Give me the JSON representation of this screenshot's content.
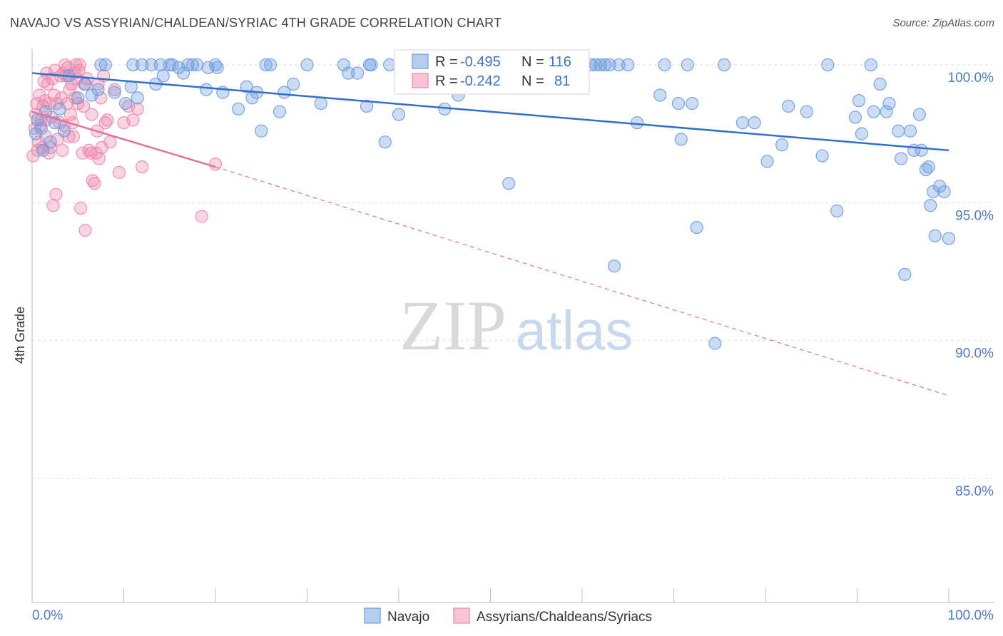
{
  "title": "NAVAJO VS ASSYRIAN/CHALDEAN/SYRIAC 4TH GRADE CORRELATION CHART",
  "source": "Source: ZipAtlas.com",
  "watermark": {
    "zip": "ZIP",
    "atlas": "atlas"
  },
  "legend": {
    "r_label": "R =",
    "n_label": "N =",
    "rows": [
      {
        "r": "-0.495",
        "n": "116"
      },
      {
        "r": "-0.242",
        "n": "81"
      }
    ]
  },
  "chart_data": {
    "type": "scatter",
    "title": "NAVAJO VS ASSYRIAN/CHALDEAN/SYRIAC 4TH GRADE CORRELATION CHART",
    "xlabel": "",
    "ylabel": "4th Grade",
    "xlim": [
      0,
      100
    ],
    "ylim": [
      80.5,
      100.8
    ],
    "x_tick_labels": [
      "0.0%",
      "100.0%"
    ],
    "y_ticks": [
      85,
      90,
      95,
      100
    ],
    "y_tick_labels": [
      "85.0%",
      "90.0%",
      "95.0%",
      "100.0%"
    ],
    "grid": true,
    "colors": {
      "navajo": "#6a9be0",
      "assyrian": "#ee87a9",
      "navajo_line": "#2f6fd0",
      "assyrian_line": "#e5709a",
      "tick_text": "#4a7cc7"
    },
    "series": [
      {
        "name": "Navajo",
        "r": -0.495,
        "n": 116,
        "trend": {
          "x": [
            0,
            100
          ],
          "y": [
            99.7,
            96.9
          ]
        },
        "points": [
          [
            0.4,
            97.5
          ],
          [
            0.6,
            98.0
          ],
          [
            1.0,
            97.7
          ],
          [
            1.2,
            96.9
          ],
          [
            1.5,
            98.3
          ],
          [
            2.0,
            97.2
          ],
          [
            2.5,
            97.9
          ],
          [
            3.0,
            98.4
          ],
          [
            3.5,
            97.6
          ],
          [
            4.0,
            99.6
          ],
          [
            5.0,
            98.8
          ],
          [
            5.8,
            99.3
          ],
          [
            6.5,
            98.9
          ],
          [
            7.2,
            99.1
          ],
          [
            7.5,
            100.0
          ],
          [
            8.0,
            100.0
          ],
          [
            9.0,
            99.0
          ],
          [
            10.2,
            98.6
          ],
          [
            10.8,
            99.2
          ],
          [
            11.0,
            100.0
          ],
          [
            11.5,
            98.8
          ],
          [
            12.0,
            100.0
          ],
          [
            13.0,
            100.0
          ],
          [
            13.5,
            99.3
          ],
          [
            14.0,
            100.0
          ],
          [
            14.3,
            99.6
          ],
          [
            15.0,
            100.0
          ],
          [
            15.3,
            100.0
          ],
          [
            16.0,
            99.9
          ],
          [
            16.5,
            99.7
          ],
          [
            17.0,
            100.0
          ],
          [
            17.5,
            100.0
          ],
          [
            18.0,
            100.0
          ],
          [
            19.0,
            99.1
          ],
          [
            19.2,
            99.9
          ],
          [
            20.0,
            100.0
          ],
          [
            20.2,
            99.9
          ],
          [
            20.8,
            99.0
          ],
          [
            22.5,
            98.4
          ],
          [
            23.4,
            99.2
          ],
          [
            24.0,
            98.8
          ],
          [
            24.5,
            99.0
          ],
          [
            25.0,
            97.6
          ],
          [
            25.5,
            100.0
          ],
          [
            26.0,
            100.0
          ],
          [
            27.0,
            98.3
          ],
          [
            27.5,
            99.0
          ],
          [
            28.5,
            99.3
          ],
          [
            30.0,
            100.0
          ],
          [
            31.5,
            98.6
          ],
          [
            34.0,
            100.0
          ],
          [
            34.5,
            99.7
          ],
          [
            35.5,
            99.7
          ],
          [
            36.5,
            98.5
          ],
          [
            36.8,
            100.0
          ],
          [
            37.0,
            100.0
          ],
          [
            38.5,
            97.2
          ],
          [
            39.0,
            100.0
          ],
          [
            40.0,
            98.2
          ],
          [
            41.0,
            100.0
          ],
          [
            43.0,
            100.0
          ],
          [
            45.0,
            98.4
          ],
          [
            46.5,
            98.9
          ],
          [
            52.0,
            95.7
          ],
          [
            52.5,
            100.0
          ],
          [
            56.0,
            99.4
          ],
          [
            61.0,
            100.0
          ],
          [
            61.5,
            100.0
          ],
          [
            62.0,
            100.0
          ],
          [
            62.5,
            100.0
          ],
          [
            63.0,
            100.0
          ],
          [
            63.5,
            92.7
          ],
          [
            64.0,
            100.0
          ],
          [
            65.0,
            100.0
          ],
          [
            66.0,
            97.9
          ],
          [
            68.5,
            98.9
          ],
          [
            69.0,
            100.0
          ],
          [
            70.5,
            98.6
          ],
          [
            70.8,
            97.3
          ],
          [
            71.5,
            100.0
          ],
          [
            72.0,
            98.6
          ],
          [
            72.5,
            94.1
          ],
          [
            74.5,
            89.9
          ],
          [
            75.5,
            100.0
          ],
          [
            77.5,
            97.9
          ],
          [
            78.8,
            97.9
          ],
          [
            80.2,
            96.5
          ],
          [
            81.8,
            97.1
          ],
          [
            82.5,
            98.5
          ],
          [
            84.5,
            98.3
          ],
          [
            86.2,
            96.7
          ],
          [
            86.8,
            100.0
          ],
          [
            87.8,
            94.7
          ],
          [
            89.8,
            98.1
          ],
          [
            90.2,
            98.7
          ],
          [
            90.5,
            97.5
          ],
          [
            91.5,
            100.0
          ],
          [
            91.8,
            98.3
          ],
          [
            92.5,
            99.3
          ],
          [
            93.2,
            98.3
          ],
          [
            93.5,
            98.6
          ],
          [
            94.5,
            97.6
          ],
          [
            94.8,
            96.6
          ],
          [
            95.2,
            92.4
          ],
          [
            95.8,
            97.6
          ],
          [
            96.2,
            96.9
          ],
          [
            96.8,
            98.2
          ],
          [
            97.0,
            96.9
          ],
          [
            97.5,
            96.2
          ],
          [
            97.8,
            96.3
          ],
          [
            98.0,
            94.9
          ],
          [
            98.3,
            95.4
          ],
          [
            98.5,
            93.8
          ],
          [
            99.0,
            95.6
          ],
          [
            99.5,
            95.4
          ],
          [
            100.0,
            93.7
          ]
        ]
      },
      {
        "name": "Assyrians/Chaldeans/Syriacs",
        "r": -0.242,
        "n": 81,
        "trend": {
          "x": [
            0,
            20
          ],
          "y": [
            98.3,
            96.3
          ],
          "x_ext": [
            20,
            100
          ],
          "y_ext": [
            96.3,
            88.0
          ]
        },
        "points": [
          [
            0.1,
            96.7
          ],
          [
            0.3,
            97.7
          ],
          [
            0.4,
            98.2
          ],
          [
            0.5,
            98.6
          ],
          [
            0.6,
            96.9
          ],
          [
            0.7,
            97.2
          ],
          [
            0.8,
            98.9
          ],
          [
            0.9,
            97.8
          ],
          [
            1.0,
            98.0
          ],
          [
            1.1,
            97.0
          ],
          [
            1.2,
            98.5
          ],
          [
            1.3,
            99.4
          ],
          [
            1.4,
            98.7
          ],
          [
            1.5,
            97.4
          ],
          [
            1.5,
            98.0
          ],
          [
            1.6,
            99.7
          ],
          [
            1.7,
            99.3
          ],
          [
            1.8,
            96.8
          ],
          [
            1.9,
            98.6
          ],
          [
            2.0,
            97.0
          ],
          [
            2.1,
            98.1
          ],
          [
            2.2,
            99.5
          ],
          [
            2.3,
            94.9
          ],
          [
            2.4,
            98.9
          ],
          [
            2.5,
            99.8
          ],
          [
            2.6,
            95.3
          ],
          [
            2.7,
            98.6
          ],
          [
            2.8,
            97.3
          ],
          [
            3.0,
            97.9
          ],
          [
            3.1,
            99.6
          ],
          [
            3.2,
            98.8
          ],
          [
            3.3,
            96.9
          ],
          [
            3.4,
            99.7
          ],
          [
            3.5,
            97.8
          ],
          [
            3.6,
            100.0
          ],
          [
            3.7,
            99.6
          ],
          [
            3.8,
            98.6
          ],
          [
            3.9,
            99.9
          ],
          [
            4.0,
            97.4
          ],
          [
            4.1,
            99.1
          ],
          [
            4.2,
            98.2
          ],
          [
            4.3,
            99.3
          ],
          [
            4.4,
            97.9
          ],
          [
            4.5,
            97.4
          ],
          [
            4.6,
            99.7
          ],
          [
            4.7,
            98.8
          ],
          [
            4.8,
            100.0
          ],
          [
            4.9,
            99.5
          ],
          [
            5.0,
            98.6
          ],
          [
            5.1,
            99.8
          ],
          [
            5.2,
            100.0
          ],
          [
            5.3,
            94.8
          ],
          [
            5.5,
            96.8
          ],
          [
            5.6,
            98.5
          ],
          [
            5.7,
            99.3
          ],
          [
            5.8,
            94.0
          ],
          [
            6.0,
            99.5
          ],
          [
            6.2,
            96.9
          ],
          [
            6.4,
            96.8
          ],
          [
            6.5,
            98.2
          ],
          [
            6.6,
            95.8
          ],
          [
            6.8,
            95.7
          ],
          [
            7.0,
            96.8
          ],
          [
            7.1,
            97.6
          ],
          [
            7.2,
            99.3
          ],
          [
            7.3,
            96.6
          ],
          [
            7.5,
            98.8
          ],
          [
            7.6,
            97.0
          ],
          [
            7.8,
            99.6
          ],
          [
            8.0,
            97.9
          ],
          [
            8.2,
            98.0
          ],
          [
            8.5,
            97.2
          ],
          [
            9.0,
            99.1
          ],
          [
            9.5,
            96.1
          ],
          [
            10.0,
            97.9
          ],
          [
            10.5,
            98.5
          ],
          [
            11.0,
            98.0
          ],
          [
            11.5,
            98.4
          ],
          [
            12.0,
            96.3
          ],
          [
            18.5,
            94.5
          ],
          [
            20.0,
            96.4
          ]
        ]
      }
    ]
  },
  "bottom_legend": [
    {
      "label": "Navajo"
    },
    {
      "label": "Assyrians/Chaldeans/Syriacs"
    }
  ]
}
